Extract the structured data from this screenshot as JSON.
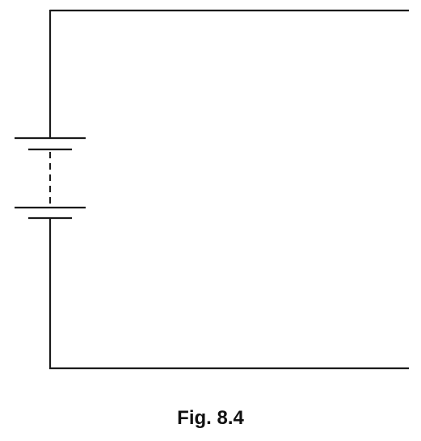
{
  "figure": {
    "caption": "Fig. 8.4"
  },
  "circuit": {
    "components": [
      {
        "type": "wire",
        "name": "top-wire"
      },
      {
        "type": "wire",
        "name": "left-upper-wire"
      },
      {
        "type": "wire",
        "name": "left-lower-wire"
      },
      {
        "type": "wire",
        "name": "bottom-wire"
      },
      {
        "type": "battery",
        "name": "battery",
        "cells_drawn": 2,
        "break_style": "dashed"
      }
    ]
  }
}
